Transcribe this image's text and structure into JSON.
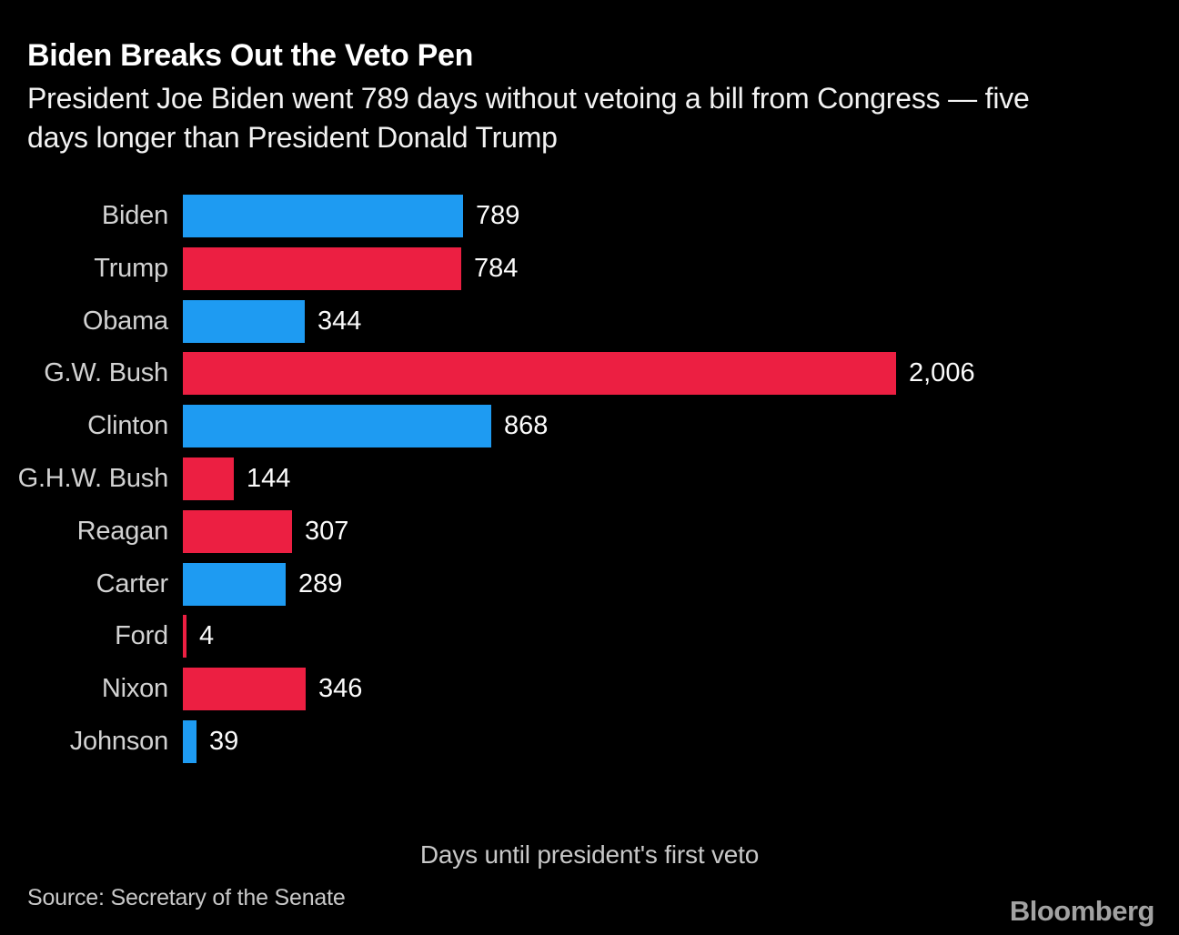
{
  "page": {
    "title": "Biden Breaks Out the Veto Pen",
    "subtitle_line1": "President Joe Biden went 789 days without vetoing a bill from Congress — five",
    "subtitle_line2": "days longer than President Donald Trump",
    "axis_label": "Days until president's first veto",
    "source": "Source: Secretary of the Senate",
    "brand": "Bloomberg"
  },
  "colors": {
    "background": "#000000",
    "bar_blue": "#1e9bf2",
    "bar_red": "#ec1f42",
    "title_text": "#ffffff",
    "subtitle_text": "#f2f2f2",
    "category_label_text": "#d2d2d2",
    "value_label_text": "#fbfbfb",
    "muted_text": "#c8c8c8",
    "brand_text": "#a2a2a2"
  },
  "chart_data": {
    "type": "bar",
    "orientation": "horizontal",
    "title": "Biden Breaks Out the Veto Pen",
    "subtitle": "President Joe Biden went 789 days without vetoing a bill from Congress — five days longer than President Donald Trump",
    "xlabel": "Days until president's first veto",
    "xlim": [
      0,
      2006
    ],
    "grid": false,
    "legend": "none",
    "categories": [
      "Biden",
      "Trump",
      "Obama",
      "G.W. Bush",
      "Clinton",
      "G.H.W. Bush",
      "Reagan",
      "Carter",
      "Ford",
      "Nixon",
      "Johnson"
    ],
    "values": [
      789,
      784,
      344,
      2006,
      868,
      144,
      307,
      289,
      4,
      346,
      39
    ],
    "value_labels": [
      "789",
      "784",
      "344",
      "2,006",
      "868",
      "144",
      "307",
      "289",
      "4",
      "346",
      "39"
    ],
    "bar_colors": [
      "#1e9bf2",
      "#ec1f42",
      "#1e9bf2",
      "#ec1f42",
      "#1e9bf2",
      "#ec1f42",
      "#ec1f42",
      "#1e9bf2",
      "#ec1f42",
      "#ec1f42",
      "#1e9bf2"
    ],
    "source": "Source: Secretary of the Senate",
    "brand": "Bloomberg"
  }
}
